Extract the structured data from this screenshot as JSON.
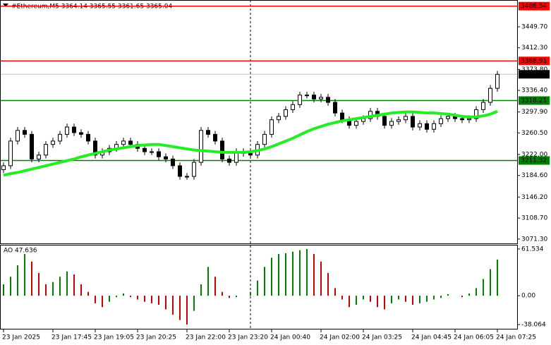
{
  "chart_data": {
    "type": "candlestick",
    "title": "#Ethereum,M5  3364.14 3365.55 3361.65 3365.04",
    "categories": [
      "23 Jan 2025",
      null,
      null,
      null,
      null,
      null,
      null,
      "23 Jan 17:45",
      null,
      null,
      null,
      null,
      null,
      "23 Jan 19:05",
      null,
      null,
      null,
      null,
      null,
      "23 Jan 20:25",
      null,
      null,
      null,
      null,
      null,
      null,
      "23 Jan 22:00",
      null,
      null,
      null,
      null,
      null,
      "23 Jan 23:20",
      null,
      null,
      null,
      null,
      null,
      "24 Jan 00:40",
      null,
      null,
      null,
      null,
      null,
      null,
      "24 Jan 02:00",
      null,
      null,
      null,
      null,
      null,
      "24 Jan 03:25",
      null,
      null,
      null,
      null,
      null,
      null,
      "24 Jan 04:45",
      null,
      null,
      null,
      null,
      null,
      "24 Jan 06:05",
      null,
      null,
      null,
      null,
      null,
      "24 Jan 07:25"
    ],
    "open": [
      3195,
      3202,
      3246,
      3265,
      3258,
      3214,
      3221,
      3240,
      3246,
      3258,
      3271,
      3261,
      3258,
      3246,
      3221,
      3227,
      3233,
      3240,
      3246,
      3240,
      3233,
      3227,
      3227,
      3218,
      3214,
      3202,
      3183,
      3183,
      3208,
      3265,
      3258,
      3246,
      3214,
      3208,
      3227,
      3224,
      3221,
      3240,
      3258,
      3284,
      3290,
      3302,
      3311,
      3328,
      3328,
      3321,
      3324,
      3315,
      3296,
      3284,
      3274,
      3281,
      3286,
      3299,
      3290,
      3274,
      3281,
      3284,
      3290,
      3271,
      3277,
      3267,
      3277,
      3286,
      3290,
      3286,
      3284,
      3286,
      3302,
      3315,
      3340
    ],
    "high": [
      3208,
      3252,
      3271,
      3271,
      3264,
      3227,
      3246,
      3252,
      3264,
      3277,
      3277,
      3267,
      3264,
      3252,
      3233,
      3239,
      3246,
      3252,
      3252,
      3246,
      3239,
      3233,
      3233,
      3224,
      3220,
      3208,
      3189,
      3214,
      3271,
      3271,
      3264,
      3252,
      3220,
      3233,
      3233,
      3230,
      3246,
      3264,
      3290,
      3296,
      3308,
      3317,
      3334,
      3334,
      3334,
      3330,
      3330,
      3321,
      3302,
      3290,
      3287,
      3292,
      3305,
      3305,
      3296,
      3287,
      3290,
      3296,
      3296,
      3283,
      3283,
      3283,
      3292,
      3296,
      3296,
      3292,
      3292,
      3308,
      3321,
      3346,
      3371
    ],
    "low": [
      3189,
      3196,
      3240,
      3252,
      3208,
      3208,
      3215,
      3234,
      3240,
      3252,
      3255,
      3252,
      3240,
      3215,
      3215,
      3221,
      3227,
      3234,
      3234,
      3227,
      3221,
      3221,
      3212,
      3208,
      3196,
      3177,
      3177,
      3177,
      3202,
      3252,
      3240,
      3208,
      3202,
      3202,
      3218,
      3215,
      3215,
      3234,
      3252,
      3278,
      3284,
      3296,
      3305,
      3322,
      3315,
      3315,
      3309,
      3290,
      3278,
      3268,
      3268,
      3275,
      3280,
      3284,
      3268,
      3268,
      3275,
      3278,
      3265,
      3265,
      3261,
      3261,
      3271,
      3280,
      3280,
      3278,
      3278,
      3280,
      3296,
      3309,
      3334
    ],
    "close": [
      3202,
      3246,
      3265,
      3258,
      3214,
      3221,
      3240,
      3246,
      3258,
      3271,
      3261,
      3258,
      3246,
      3221,
      3227,
      3233,
      3240,
      3246,
      3240,
      3233,
      3227,
      3227,
      3218,
      3214,
      3202,
      3183,
      3183,
      3208,
      3265,
      3258,
      3246,
      3214,
      3208,
      3227,
      3224,
      3221,
      3240,
      3258,
      3284,
      3290,
      3302,
      3311,
      3328,
      3328,
      3321,
      3324,
      3315,
      3296,
      3284,
      3274,
      3281,
      3286,
      3299,
      3290,
      3274,
      3281,
      3284,
      3290,
      3271,
      3277,
      3267,
      3277,
      3286,
      3290,
      3286,
      3284,
      3286,
      3302,
      3315,
      3340,
      3365
    ],
    "ma": {
      "color": "#22ee22",
      "values": [
        3185,
        3188,
        3190,
        3193,
        3196,
        3199,
        3202,
        3205,
        3208,
        3211,
        3214,
        3218,
        3221,
        3224,
        3227,
        3230,
        3232,
        3234,
        3236,
        3238,
        3239,
        3240,
        3240,
        3238,
        3236,
        3234,
        3232,
        3230,
        3229,
        3228,
        3227,
        3226,
        3226,
        3226,
        3226,
        3227,
        3229,
        3232,
        3236,
        3241,
        3246,
        3251,
        3257,
        3263,
        3268,
        3272,
        3276,
        3279,
        3282,
        3284,
        3286,
        3288,
        3290,
        3292,
        3294,
        3296,
        3297,
        3298,
        3298,
        3297,
        3296,
        3296,
        3295,
        3294,
        3292,
        3290,
        3289,
        3289,
        3291,
        3294,
        3299
      ]
    },
    "ylim": [
      3063.5,
      3497.5
    ],
    "yticks": [
      {
        "value": 3449.7,
        "label": "3449.70"
      },
      {
        "value": 3412.3,
        "label": "3412.30"
      },
      {
        "value": 3373.8,
        "label": "3373.80"
      },
      {
        "value": 3336.4,
        "label": "3336.40"
      },
      {
        "value": 3297.9,
        "label": "3297.90"
      },
      {
        "value": 3260.5,
        "label": "3260.50"
      },
      {
        "value": 3222,
        "label": "3222.00"
      },
      {
        "value": 3184.6,
        "label": "3184.60"
      },
      {
        "value": 3146.2,
        "label": "3146.20"
      },
      {
        "value": 3108.7,
        "label": "3108.70"
      },
      {
        "value": 3071.3,
        "label": "3071.30"
      }
    ],
    "levels": [
      {
        "value": 3486.54,
        "color": "#ff0000"
      },
      {
        "value": 3388.91,
        "color": "#ff0000"
      },
      {
        "value": 3318.21,
        "color": "#008000"
      },
      {
        "value": 3211.32,
        "color": "#008000"
      }
    ],
    "last": 3365.04,
    "ao": {
      "title": "AO 47.636",
      "up_color": "#008000",
      "down_color": "#cc0000",
      "values": [
        15,
        25,
        40,
        55,
        45,
        30,
        15,
        18,
        25,
        32,
        28,
        15,
        5,
        -10,
        -15,
        -8,
        -2,
        3,
        -2,
        -5,
        -8,
        -10,
        -12,
        -18,
        -25,
        -32,
        -38,
        -20,
        15,
        38,
        25,
        5,
        -3,
        -2,
        0,
        5,
        20,
        38,
        50,
        55,
        56,
        58,
        60,
        61.534,
        55,
        45,
        30,
        10,
        -5,
        -15,
        -12,
        -5,
        -8,
        -15,
        -18,
        -10,
        -5,
        -8,
        -12,
        -10,
        -8,
        -5,
        -3,
        2,
        0,
        -2,
        3,
        10,
        22,
        35,
        47.636
      ],
      "ylim": [
        -44.5,
        66.1
      ],
      "yticks": [
        61.534,
        {
          "value": 0,
          "label": "0.00"
        },
        -38.064
      ]
    }
  }
}
